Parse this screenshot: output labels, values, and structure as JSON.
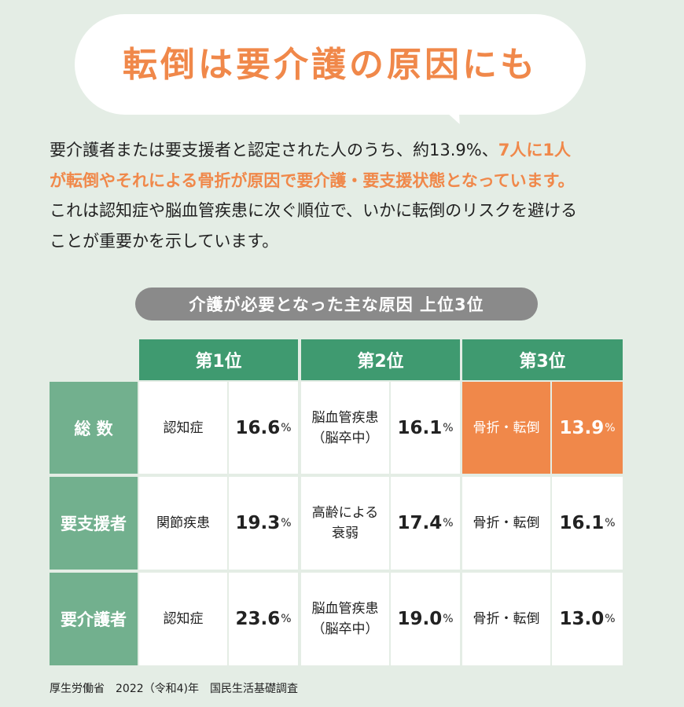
{
  "headline": "転倒は要介護の原因にも",
  "intro": {
    "text1": "要介護者または要支援者と認定された人のうち、約13.9%、",
    "hl1": "7人に1人",
    "hl2": "が転倒やそれによる骨折が原因で要介護・要支援状態となっています。",
    "line3": "これは認知症や脳血管疾患に次ぐ順位で、いかに転倒のリスクを避ける",
    "line4": "ことが重要かを示しています。"
  },
  "table_caption": "介護が必要となった主な原因 上位3位",
  "ranks": [
    "第1位",
    "第2位",
    "第3位"
  ],
  "row_labels": [
    "総 数",
    "要支援者",
    "要介護者"
  ],
  "percent_sign": "%",
  "rows": [
    {
      "r1_cause": "認知症",
      "r1_value": "16.6",
      "r2_cause_l1": "脳血管疾患",
      "r2_cause_l2": "（脳卒中）",
      "r2_value": "16.1",
      "r3_cause": "骨折・転倒",
      "r3_value": "13.9"
    },
    {
      "r1_cause": "関節疾患",
      "r1_value": "19.3",
      "r2_cause_l1": "高齢による",
      "r2_cause_l2": "衰弱",
      "r2_value": "17.4",
      "r3_cause": "骨折・転倒",
      "r3_value": "16.1"
    },
    {
      "r1_cause": "認知症",
      "r1_value": "23.6",
      "r2_cause_l1": "脳血管疾患",
      "r2_cause_l2": "（脳卒中）",
      "r2_value": "19.0",
      "r3_cause": "骨折・転倒",
      "r3_value": "13.0"
    }
  ],
  "source": "厚生労働省　2022（令和4)年　国民生活基礎調査"
}
